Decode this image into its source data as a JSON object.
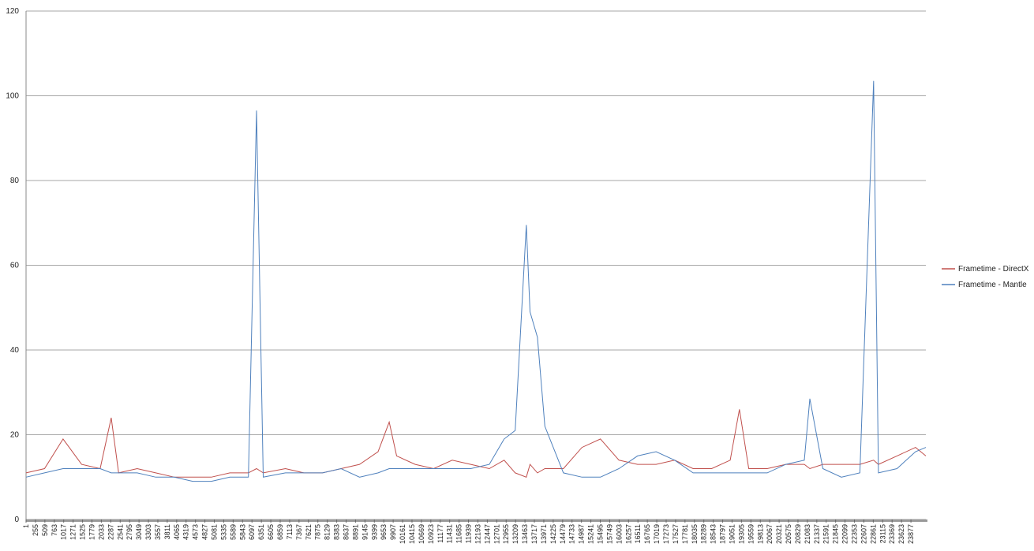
{
  "chart_data": {
    "type": "line",
    "x": [
      1,
      500,
      1000,
      1500,
      2000,
      2300,
      2500,
      3000,
      3500,
      4000,
      4500,
      5000,
      5500,
      6000,
      6220,
      6400,
      7000,
      7500,
      8000,
      8500,
      9000,
      9500,
      9800,
      10000,
      10500,
      11000,
      11500,
      12000,
      12500,
      12900,
      13200,
      13500,
      13600,
      13800,
      14000,
      14500,
      15000,
      15500,
      16000,
      16500,
      17000,
      17500,
      18000,
      18500,
      19000,
      19250,
      19500,
      20000,
      20500,
      21000,
      21150,
      21500,
      22000,
      22500,
      22870,
      23000,
      23500,
      24000,
      24280
    ],
    "series": [
      {
        "name": "Frametime - DirectX",
        "color": "#c0504d",
        "values": [
          11,
          12,
          19,
          13,
          12,
          24,
          11,
          12,
          11,
          10,
          10,
          10,
          11,
          11,
          12,
          11,
          12,
          11,
          11,
          12,
          13,
          16,
          23,
          15,
          13,
          12,
          14,
          13,
          12,
          14,
          11,
          10,
          13,
          11,
          12,
          12,
          17,
          19,
          14,
          13,
          13,
          14,
          12,
          12,
          14,
          26,
          12,
          12,
          13,
          13,
          12,
          13,
          13,
          13,
          14,
          13,
          15,
          17,
          15
        ]
      },
      {
        "name": "Frametime - Mantle",
        "color": "#4f81bd",
        "values": [
          10,
          11,
          12,
          12,
          12,
          11,
          11,
          11,
          10,
          10,
          9,
          9,
          10,
          10,
          96.5,
          10,
          11,
          11,
          11,
          12,
          10,
          11,
          12,
          12,
          12,
          12,
          12,
          12,
          13,
          19,
          21,
          69.5,
          49,
          43,
          22,
          11,
          10,
          10,
          12,
          15,
          16,
          14,
          11,
          11,
          11,
          11,
          11,
          11,
          13,
          14,
          28.5,
          12,
          10,
          11,
          103.5,
          11,
          12,
          16,
          17
        ]
      }
    ],
    "xlim": [
      1,
      24280
    ],
    "xticks": [
      1,
      255,
      509,
      763,
      1017,
      1271,
      1525,
      1779,
      2033,
      2287,
      2541,
      2795,
      3049,
      3303,
      3557,
      3811,
      4065,
      4319,
      4573,
      4827,
      5081,
      5335,
      5589,
      5843,
      6097,
      6351,
      6605,
      6859,
      7113,
      7367,
      7621,
      7875,
      8129,
      8383,
      8637,
      8891,
      9145,
      9399,
      9653,
      9907,
      10161,
      10415,
      10669,
      10923,
      11177,
      11431,
      11685,
      11939,
      12193,
      12447,
      12701,
      12955,
      13209,
      13463,
      13717,
      13971,
      14225,
      14479,
      14733,
      14987,
      15241,
      15495,
      15749,
      16003,
      16257,
      16511,
      16765,
      17019,
      17273,
      17527,
      17781,
      18035,
      18289,
      18543,
      18797,
      19051,
      19305,
      19559,
      19813,
      20067,
      20321,
      20575,
      20829,
      21083,
      21337,
      21591,
      21845,
      22099,
      22353,
      22607,
      22861,
      23115,
      23369,
      23623,
      23877
    ],
    "ylim": [
      0,
      120
    ],
    "yticks": [
      0,
      20,
      40,
      60,
      80,
      100,
      120
    ],
    "grid": true,
    "legend": "right"
  }
}
